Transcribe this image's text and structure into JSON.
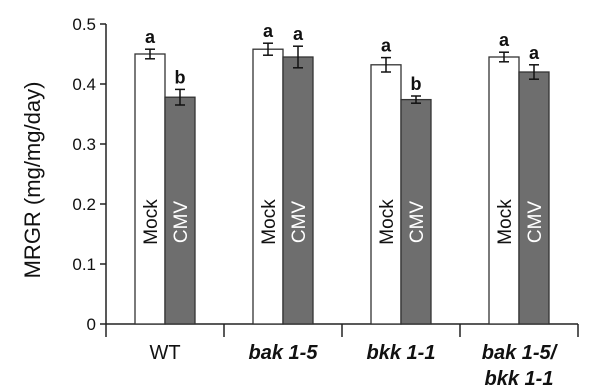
{
  "chart_data": {
    "type": "bar",
    "ylabel": "MRGR (mg/mg/day)",
    "ylim": [
      0,
      0.5
    ],
    "yticks": [
      "0",
      "0.1",
      "0.2",
      "0.3",
      "0.4",
      "0.5"
    ],
    "categories": [
      {
        "lines": [
          "WT"
        ],
        "italic": false
      },
      {
        "lines": [
          "bak 1-5"
        ],
        "italic": true
      },
      {
        "lines": [
          "bkk 1-1"
        ],
        "italic": true
      },
      {
        "lines": [
          "bak 1-5/",
          "bkk 1-1"
        ],
        "italic": true
      }
    ],
    "series": [
      {
        "name": "Mock",
        "color": "#ffffff",
        "text_color": "#111111",
        "values": [
          0.45,
          0.458,
          0.432,
          0.445
        ],
        "errors": [
          0.008,
          0.01,
          0.012,
          0.008
        ],
        "letters": [
          "a",
          "a",
          "a",
          "a"
        ]
      },
      {
        "name": "CMV",
        "color": "#6e6e6e",
        "text_color": "#ffffff",
        "values": [
          0.378,
          0.445,
          0.374,
          0.42
        ],
        "errors": [
          0.013,
          0.018,
          0.006,
          0.012
        ],
        "letters": [
          "b",
          "a",
          "b",
          "a"
        ]
      }
    ],
    "grid": false,
    "legend": "none (series labels written inside bars)"
  }
}
